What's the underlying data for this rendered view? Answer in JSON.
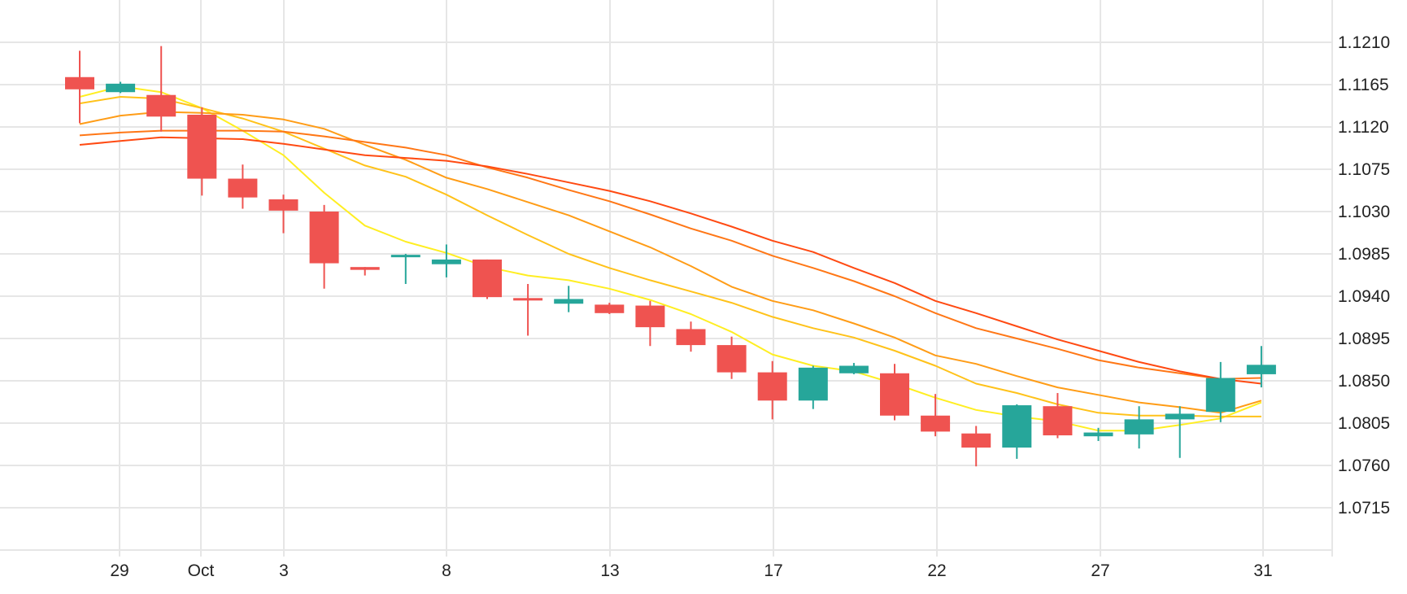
{
  "chart_data": {
    "type": "candlestick",
    "title": "",
    "xlabel": "",
    "ylabel": "",
    "x_ticks": [
      "29",
      "Oct",
      "3",
      "8",
      "13",
      "17",
      "22",
      "27",
      "31"
    ],
    "y_ticks": [
      "1.1210",
      "1.1165",
      "1.1120",
      "1.1075",
      "1.1030",
      "1.0985",
      "1.0940",
      "1.0895",
      "1.0850",
      "1.0805",
      "1.0760",
      "1.0715"
    ],
    "ylim": [
      1.067,
      1.1253
    ],
    "grid": true,
    "colors": {
      "up": "#26a69a",
      "down": "#ef5350",
      "grid": "#e6e6e6"
    },
    "candles": [
      {
        "date": "Sep 28",
        "open": 1.1173,
        "high": 1.1201,
        "low": 1.1124,
        "close": 1.116
      },
      {
        "date": "Sep 29",
        "open": 1.1157,
        "high": 1.1168,
        "low": 1.1156,
        "close": 1.1166
      },
      {
        "date": "Sep 30",
        "open": 1.1154,
        "high": 1.1206,
        "low": 1.1115,
        "close": 1.1131
      },
      {
        "date": "Oct 1",
        "open": 1.1133,
        "high": 1.1141,
        "low": 1.1047,
        "close": 1.1065
      },
      {
        "date": "Oct 2",
        "open": 1.1065,
        "high": 1.108,
        "low": 1.1033,
        "close": 1.1045
      },
      {
        "date": "Oct 3",
        "open": 1.1043,
        "high": 1.1048,
        "low": 1.1007,
        "close": 1.1031
      },
      {
        "date": "Oct 4",
        "open": 1.103,
        "high": 1.1037,
        "low": 1.0948,
        "close": 1.0975
      },
      {
        "date": "Oct 5",
        "open": 1.0971,
        "high": 1.0971,
        "low": 1.0962,
        "close": 1.0968
      },
      {
        "date": "Oct 7",
        "open": 1.0983,
        "high": 1.0985,
        "low": 1.0953,
        "close": 1.0984
      },
      {
        "date": "Oct 8",
        "open": 1.0974,
        "high": 1.0995,
        "low": 1.096,
        "close": 1.0979
      },
      {
        "date": "Oct 9",
        "open": 1.0979,
        "high": 1.0979,
        "low": 1.0937,
        "close": 1.0939
      },
      {
        "date": "Oct 10",
        "open": 1.0938,
        "high": 1.0953,
        "low": 1.0898,
        "close": 1.0936
      },
      {
        "date": "Oct 11",
        "open": 1.0932,
        "high": 1.0951,
        "low": 1.0923,
        "close": 1.0937
      },
      {
        "date": "Oct 12",
        "open": 1.0931,
        "high": 1.0933,
        "low": 1.0921,
        "close": 1.0922
      },
      {
        "date": "Oct 14",
        "open": 1.093,
        "high": 1.0935,
        "low": 1.0887,
        "close": 1.0907
      },
      {
        "date": "Oct 15",
        "open": 1.0905,
        "high": 1.0913,
        "low": 1.0881,
        "close": 1.0888
      },
      {
        "date": "Oct 16",
        "open": 1.0888,
        "high": 1.0897,
        "low": 1.0852,
        "close": 1.0859
      },
      {
        "date": "Oct 17",
        "open": 1.0859,
        "high": 1.0871,
        "low": 1.0809,
        "close": 1.0829
      },
      {
        "date": "Oct 18",
        "open": 1.0829,
        "high": 1.0866,
        "low": 1.082,
        "close": 1.0864
      },
      {
        "date": "Oct 19",
        "open": 1.0858,
        "high": 1.0869,
        "low": 1.0857,
        "close": 1.0866
      },
      {
        "date": "Oct 21",
        "open": 1.0858,
        "high": 1.0868,
        "low": 1.0808,
        "close": 1.0813
      },
      {
        "date": "Oct 22",
        "open": 1.0813,
        "high": 1.0836,
        "low": 1.0791,
        "close": 1.0796
      },
      {
        "date": "Oct 23",
        "open": 1.0794,
        "high": 1.0802,
        "low": 1.0759,
        "close": 1.0779
      },
      {
        "date": "Oct 24",
        "open": 1.0779,
        "high": 1.0825,
        "low": 1.0767,
        "close": 1.0824
      },
      {
        "date": "Oct 25",
        "open": 1.0823,
        "high": 1.0837,
        "low": 1.0789,
        "close": 1.0792
      },
      {
        "date": "Oct 27",
        "open": 1.0791,
        "high": 1.08,
        "low": 1.0786,
        "close": 1.0795
      },
      {
        "date": "Oct 28",
        "open": 1.0793,
        "high": 1.0823,
        "low": 1.0778,
        "close": 1.0809
      },
      {
        "date": "Oct 29",
        "open": 1.0809,
        "high": 1.0823,
        "low": 1.0768,
        "close": 1.0815
      },
      {
        "date": "Oct 30",
        "open": 1.0817,
        "high": 1.087,
        "low": 1.0806,
        "close": 1.0853
      },
      {
        "date": "Oct 31",
        "open": 1.0857,
        "high": 1.0887,
        "low": 1.0843,
        "close": 1.0867
      }
    ],
    "series": [
      {
        "color": "#ffee22",
        "values": [
          1.1152,
          1.1163,
          1.1157,
          1.114,
          1.1116,
          1.109,
          1.105,
          1.1015,
          1.0998,
          1.0986,
          1.0971,
          1.0962,
          1.0957,
          1.0948,
          1.0936,
          1.0921,
          1.0902,
          1.0878,
          1.0866,
          1.086,
          1.0847,
          1.0832,
          1.0819,
          1.0812,
          1.0807,
          1.0797,
          1.0797,
          1.0803,
          1.081,
          1.0827
        ]
      },
      {
        "color": "#ffc21a",
        "values": [
          1.1145,
          1.1152,
          1.115,
          1.114,
          1.1129,
          1.1115,
          1.1097,
          1.1079,
          1.1067,
          1.1048,
          1.1026,
          1.1005,
          1.0985,
          1.097,
          1.0957,
          1.0945,
          1.0933,
          1.0918,
          1.0906,
          1.0896,
          1.0882,
          1.0866,
          1.0847,
          1.0837,
          1.0825,
          1.0816,
          1.0813,
          1.0813,
          1.0812,
          1.0812
        ]
      },
      {
        "color": "#ff9c16",
        "values": [
          1.1123,
          1.1132,
          1.1136,
          1.1135,
          1.1133,
          1.1128,
          1.1118,
          1.1101,
          1.1085,
          1.1066,
          1.1054,
          1.104,
          1.1026,
          1.1009,
          1.0992,
          1.0972,
          1.095,
          1.0935,
          1.0925,
          1.0911,
          1.0896,
          1.0877,
          1.0868,
          1.0855,
          1.0843,
          1.0835,
          1.0827,
          1.0822,
          1.0816,
          1.0829
        ]
      },
      {
        "color": "#ff7716",
        "values": [
          1.1111,
          1.1114,
          1.1116,
          1.1116,
          1.1116,
          1.1115,
          1.111,
          1.1104,
          1.1098,
          1.109,
          1.1077,
          1.1066,
          1.1053,
          1.1041,
          1.1027,
          1.1012,
          1.0999,
          1.0983,
          1.097,
          1.0956,
          1.094,
          1.0922,
          1.0906,
          1.0895,
          1.0884,
          1.0872,
          1.0864,
          1.0858,
          1.0852,
          1.0853
        ]
      },
      {
        "color": "#ff4a12",
        "values": [
          1.1101,
          1.1105,
          1.1109,
          1.1108,
          1.1107,
          1.1102,
          1.1096,
          1.109,
          1.1087,
          1.1084,
          1.1078,
          1.107,
          1.1061,
          1.1052,
          1.1041,
          1.1028,
          1.1014,
          1.0999,
          1.0987,
          1.097,
          1.0954,
          1.0935,
          1.0922,
          1.0908,
          1.0894,
          1.0882,
          1.087,
          1.086,
          1.0852,
          1.0847
        ]
      }
    ]
  }
}
